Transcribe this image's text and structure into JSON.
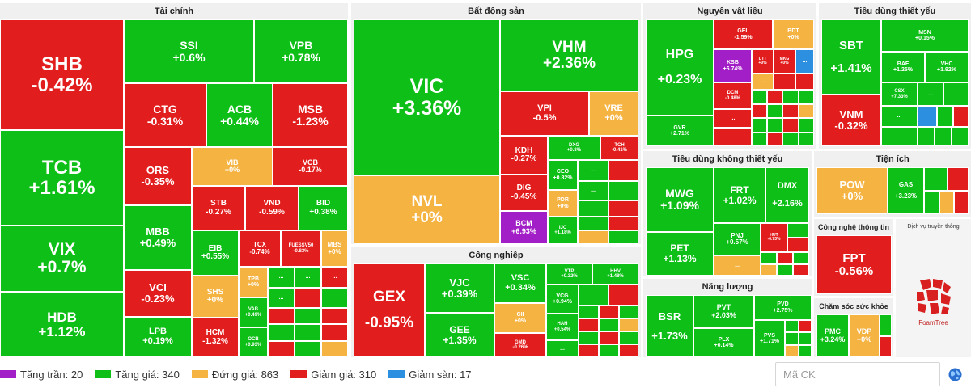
{
  "sectors": {
    "taichinh": "Tài chính",
    "bds": "Bất động sản",
    "nvl": "Nguyên vật liệu",
    "tdtx": "Tiêu dùng thiết yếu",
    "tdktx": "Tiêu dùng không thiết yếu",
    "tienich": "Tiện ích",
    "cntt": "Công nghệ thông tin",
    "dvtt": "Dịch vụ truyền thông",
    "congnghiep": "Công nghiệp",
    "nangluong": "Năng lượng",
    "cssk": "Chăm sóc sức khỏe"
  },
  "tiles": {
    "SHB": {
      "s": "SHB",
      "p": "-0.42%"
    },
    "TCB": {
      "s": "TCB",
      "p": "+1.61%"
    },
    "VIX": {
      "s": "VIX",
      "p": "+0.7%"
    },
    "HDB": {
      "s": "HDB",
      "p": "+1.12%"
    },
    "SSI": {
      "s": "SSI",
      "p": "+0.6%"
    },
    "VPB": {
      "s": "VPB",
      "p": "+0.78%"
    },
    "CTG": {
      "s": "CTG",
      "p": "-0.31%"
    },
    "ACB": {
      "s": "ACB",
      "p": "+0.44%"
    },
    "MSB": {
      "s": "MSB",
      "p": "-1.23%"
    },
    "ORS": {
      "s": "ORS",
      "p": "-0.35%"
    },
    "VIB": {
      "s": "VIB",
      "p": "+0%"
    },
    "VCB": {
      "s": "VCB",
      "p": "-0.17%"
    },
    "MBB": {
      "s": "MBB",
      "p": "+0.49%"
    },
    "STB": {
      "s": "STB",
      "p": "-0.27%"
    },
    "VND": {
      "s": "VND",
      "p": "-0.59%"
    },
    "BID": {
      "s": "BID",
      "p": "+0.38%"
    },
    "VCI": {
      "s": "VCI",
      "p": "-0.23%"
    },
    "EIB": {
      "s": "EIB",
      "p": "+0.55%"
    },
    "TCX": {
      "s": "TCX",
      "p": "-0.74%"
    },
    "FUES": {
      "s": "FUESSV50",
      "p": "-0.83%"
    },
    "MBS": {
      "s": "MBS",
      "p": "+0%"
    },
    "LPB": {
      "s": "LPB",
      "p": "+0.19%"
    },
    "SHS": {
      "s": "SHS",
      "p": "+0%"
    },
    "TPB": {
      "s": "TPB",
      "p": "+0%"
    },
    "VAB": {
      "s": "VAB",
      "p": "+0.49%"
    },
    "OCB": {
      "s": "OCB",
      "p": "+0.93%"
    },
    "HCM": {
      "s": "HCM",
      "p": "-1.32%"
    },
    "VIC": {
      "s": "VIC",
      "p": "+3.36%"
    },
    "VHM": {
      "s": "VHM",
      "p": "+2.36%"
    },
    "NVL": {
      "s": "NVL",
      "p": "+0%"
    },
    "VPI": {
      "s": "VPI",
      "p": "-0.5%"
    },
    "VRE": {
      "s": "VRE",
      "p": "+0%"
    },
    "KDH": {
      "s": "KDH",
      "p": "-0.27%"
    },
    "DXG": {
      "s": "DXG",
      "p": "+0.8%"
    },
    "TCH": {
      "s": "TCH",
      "p": "-0.41%"
    },
    "DIG": {
      "s": "DIG",
      "p": "-0.45%"
    },
    "CEO": {
      "s": "CEO",
      "p": "+0.82%"
    },
    "PDR": {
      "s": "PDR",
      "p": "+0%"
    },
    "BCM": {
      "s": "BCM",
      "p": "+6.93%"
    },
    "IJC": {
      "s": "IJC",
      "p": "+1.18%"
    },
    "GEX": {
      "s": "GEX",
      "p": "-0.95%"
    },
    "VJC": {
      "s": "VJC",
      "p": "+0.39%"
    },
    "VSC": {
      "s": "VSC",
      "p": "+0.34%"
    },
    "VTP": {
      "s": "VTP",
      "p": "+0.32%"
    },
    "HHV": {
      "s": "HHV",
      "p": "+1.48%"
    },
    "GEE": {
      "s": "GEE",
      "p": "+1.35%"
    },
    "CII": {
      "s": "CII",
      "p": "+0%"
    },
    "VCG": {
      "s": "VCG",
      "p": "+0.94%"
    },
    "HAH": {
      "s": "HAH",
      "p": "+0.54%"
    },
    "GMD": {
      "s": "GMD",
      "p": "-0.26%"
    },
    "HPG": {
      "s": "HPG",
      "p": "+0.23%"
    },
    "GEL": {
      "s": "GEL",
      "p": "-1.59%"
    },
    "BDT": {
      "s": "BDT",
      "p": "+0%"
    },
    "KSB": {
      "s": "KSB",
      "p": "+6.74%"
    },
    "DTT": {
      "s": "DTT",
      "p": "+0%"
    },
    "MKG": {
      "s": "MKG",
      "p": "+0%"
    },
    "DCM": {
      "s": "DCM",
      "p": "-0.48%"
    },
    "GVR": {
      "s": "GVR",
      "p": "+2.71%"
    },
    "SBT": {
      "s": "SBT",
      "p": "+1.41%"
    },
    "MSN": {
      "s": "MSN",
      "p": "+0.15%"
    },
    "BAF": {
      "s": "BAF",
      "p": "+1.25%"
    },
    "VHC": {
      "s": "VHC",
      "p": "+1.92%"
    },
    "CSX": {
      "s": "CSX",
      "p": "+7.33%"
    },
    "VNM": {
      "s": "VNM",
      "p": "-0.32%"
    },
    "MWG": {
      "s": "MWG",
      "p": "+1.09%"
    },
    "FRT": {
      "s": "FRT",
      "p": "+1.02%"
    },
    "DMX": {
      "s": "DMX",
      "p": "+2.16%"
    },
    "PET": {
      "s": "PET",
      "p": "+1.13%"
    },
    "PNJ": {
      "s": "PNJ",
      "p": "+0.57%"
    },
    "HUT": {
      "s": "HUT",
      "p": "-0.73%"
    },
    "POW": {
      "s": "POW",
      "p": "+0%"
    },
    "GAS": {
      "s": "GAS",
      "p": "+3.23%"
    },
    "FPT": {
      "s": "FPT",
      "p": "-0.56%"
    },
    "BSR": {
      "s": "BSR",
      "p": "+1.73%"
    },
    "PVT": {
      "s": "PVT",
      "p": "+2.03%"
    },
    "PVD": {
      "s": "PVD",
      "p": "+2.75%"
    },
    "PLX": {
      "s": "PLX",
      "p": "+0.14%"
    },
    "PVS": {
      "s": "PVS",
      "p": "+1.71%"
    },
    "PMC": {
      "s": "PMC",
      "p": "+3.24%"
    },
    "VDP": {
      "s": "VDP",
      "p": "+0%"
    }
  },
  "more_label": "...",
  "promo_logo_text": "FoamTree",
  "legend": [
    {
      "label": "Tăng trần: 20",
      "color": "#a21ec6"
    },
    {
      "label": "Tăng giá: 340",
      "color": "#0ebf17"
    },
    {
      "label": "Đứng giá: 863",
      "color": "#f5b342"
    },
    {
      "label": "Giảm giá: 310",
      "color": "#e21d1d"
    },
    {
      "label": "Giảm sàn: 17",
      "color": "#2d8fe0"
    }
  ],
  "search": {
    "placeholder": "Mã CK"
  },
  "colors": {
    "up": "#0ebf17",
    "down": "#e21d1d",
    "ref": "#f5b342",
    "ceiling": "#a21ec6",
    "floor": "#2d8fe0"
  }
}
